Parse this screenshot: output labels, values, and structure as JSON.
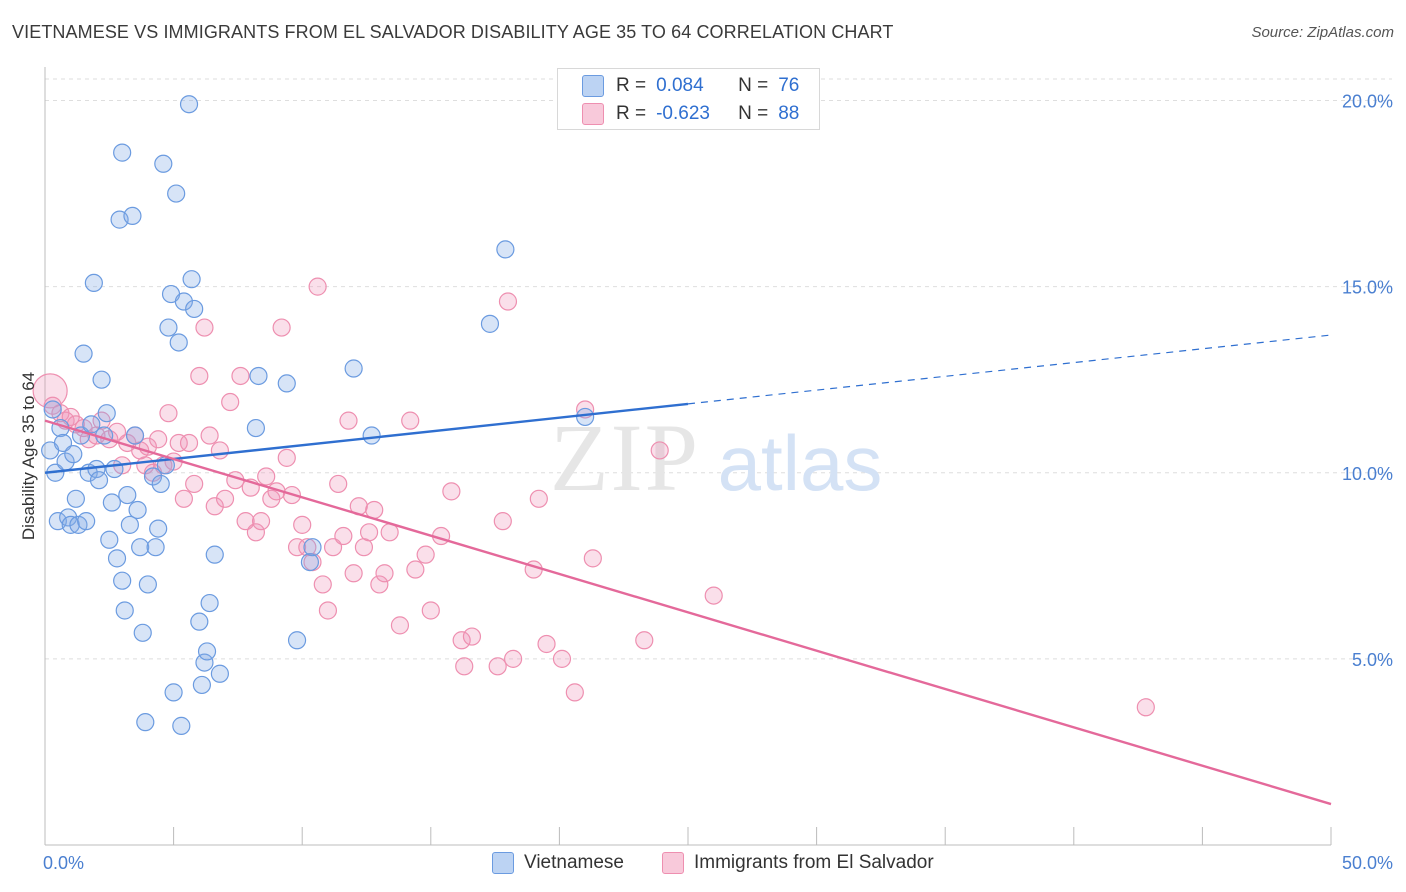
{
  "title": "VIETNAMESE VS IMMIGRANTS FROM EL SALVADOR DISABILITY AGE 35 TO 64 CORRELATION CHART",
  "source": "Source: ZipAtlas.com",
  "watermark": {
    "zip": "ZIP",
    "atlas": "atlas"
  },
  "stats": [
    {
      "r_label": "R =",
      "r_value": "0.084",
      "n_label": "N =",
      "n_value": "76"
    },
    {
      "r_label": "R =",
      "r_value": "-0.623",
      "n_label": "N =",
      "n_value": "88"
    }
  ],
  "chart_data": {
    "type": "scatter",
    "title": "VIETNAMESE VS IMMIGRANTS FROM EL SALVADOR DISABILITY AGE 35 TO 64 CORRELATION CHART",
    "xlabel": "",
    "ylabel": "Disability Age 35 to 64",
    "xlim": [
      0,
      50
    ],
    "ylim": [
      0,
      20.9
    ],
    "x_tick_labels": [
      "0.0%",
      "50.0%"
    ],
    "y_ticks": [
      5,
      10,
      15,
      20
    ],
    "y_tick_labels": [
      "5.0%",
      "10.0%",
      "15.0%",
      "20.0%"
    ],
    "grid": true,
    "legend_position": "bottom",
    "colors": {
      "vietnamese": "#6b9be0",
      "el_salvador": "#ee8fb0",
      "vietnamese_line": "#2f6fd0",
      "el_salvador_line": "#e4699a"
    },
    "series": [
      {
        "name": "Vietnamese",
        "color": "#6b9be0",
        "trend": {
          "x": [
            0,
            25
          ],
          "y": [
            10.0,
            11.85
          ],
          "dashed_extension": {
            "x": [
              25,
              50
            ],
            "y": [
              11.85,
              13.7
            ]
          }
        },
        "points": [
          [
            0.2,
            10.6
          ],
          [
            0.3,
            11.7
          ],
          [
            0.4,
            10.0
          ],
          [
            0.5,
            8.7
          ],
          [
            0.6,
            11.2
          ],
          [
            0.7,
            10.8
          ],
          [
            0.8,
            10.3
          ],
          [
            0.9,
            8.8
          ],
          [
            1.0,
            8.6
          ],
          [
            1.1,
            10.5
          ],
          [
            1.2,
            9.3
          ],
          [
            1.3,
            8.6
          ],
          [
            1.4,
            11.0
          ],
          [
            1.5,
            13.2
          ],
          [
            1.6,
            8.7
          ],
          [
            1.7,
            10.0
          ],
          [
            1.8,
            11.3
          ],
          [
            1.9,
            15.1
          ],
          [
            2.0,
            10.1
          ],
          [
            2.1,
            9.8
          ],
          [
            2.2,
            12.5
          ],
          [
            2.3,
            11.0
          ],
          [
            2.4,
            11.6
          ],
          [
            2.5,
            8.2
          ],
          [
            2.6,
            9.2
          ],
          [
            2.7,
            10.1
          ],
          [
            2.8,
            7.7
          ],
          [
            2.9,
            16.8
          ],
          [
            3.0,
            7.1
          ],
          [
            3.1,
            6.3
          ],
          [
            3.0,
            18.6
          ],
          [
            3.2,
            9.4
          ],
          [
            3.3,
            8.6
          ],
          [
            3.4,
            16.9
          ],
          [
            3.5,
            11.0
          ],
          [
            3.6,
            9.0
          ],
          [
            3.7,
            8.0
          ],
          [
            3.8,
            5.7
          ],
          [
            3.9,
            3.3
          ],
          [
            4.0,
            7.0
          ],
          [
            4.2,
            9.9
          ],
          [
            4.3,
            8.0
          ],
          [
            4.4,
            8.5
          ],
          [
            4.5,
            9.7
          ],
          [
            4.6,
            18.3
          ],
          [
            4.7,
            10.2
          ],
          [
            4.8,
            13.9
          ],
          [
            4.9,
            14.8
          ],
          [
            5.0,
            4.1
          ],
          [
            5.1,
            17.5
          ],
          [
            5.2,
            13.5
          ],
          [
            5.3,
            3.2
          ],
          [
            5.4,
            14.6
          ],
          [
            5.6,
            19.9
          ],
          [
            5.7,
            15.2
          ],
          [
            5.8,
            14.4
          ],
          [
            6.0,
            6.0
          ],
          [
            6.1,
            4.3
          ],
          [
            6.2,
            4.9
          ],
          [
            6.3,
            5.2
          ],
          [
            6.4,
            6.5
          ],
          [
            6.6,
            7.8
          ],
          [
            6.8,
            4.6
          ],
          [
            8.2,
            11.2
          ],
          [
            8.3,
            12.6
          ],
          [
            9.4,
            12.4
          ],
          [
            9.8,
            5.5
          ],
          [
            10.3,
            7.6
          ],
          [
            10.4,
            8.0
          ],
          [
            12.0,
            12.8
          ],
          [
            12.7,
            11.0
          ],
          [
            17.3,
            14.0
          ],
          [
            17.9,
            16.0
          ],
          [
            21.0,
            11.5
          ]
        ]
      },
      {
        "name": "Immigrants from El Salvador",
        "color": "#ee8fb0",
        "trend": {
          "x": [
            0,
            50
          ],
          "y": [
            11.4,
            1.1
          ]
        },
        "points": [
          [
            0.2,
            12.2
          ],
          [
            0.3,
            11.8
          ],
          [
            0.6,
            11.6
          ],
          [
            0.8,
            11.4
          ],
          [
            1.0,
            11.5
          ],
          [
            1.2,
            11.3
          ],
          [
            1.5,
            11.2
          ],
          [
            1.7,
            10.9
          ],
          [
            2.0,
            11.0
          ],
          [
            2.2,
            11.4
          ],
          [
            2.5,
            10.9
          ],
          [
            2.8,
            11.1
          ],
          [
            3.0,
            10.2
          ],
          [
            3.2,
            10.8
          ],
          [
            3.5,
            11.0
          ],
          [
            3.7,
            10.6
          ],
          [
            3.9,
            10.2
          ],
          [
            4.0,
            10.7
          ],
          [
            4.2,
            10.0
          ],
          [
            4.4,
            10.9
          ],
          [
            4.6,
            10.2
          ],
          [
            4.8,
            11.6
          ],
          [
            5.0,
            10.3
          ],
          [
            5.2,
            10.8
          ],
          [
            5.4,
            9.3
          ],
          [
            5.6,
            10.8
          ],
          [
            5.8,
            9.7
          ],
          [
            6.0,
            12.6
          ],
          [
            6.2,
            13.9
          ],
          [
            6.4,
            11.0
          ],
          [
            6.6,
            9.1
          ],
          [
            6.8,
            10.6
          ],
          [
            7.0,
            9.3
          ],
          [
            7.2,
            11.9
          ],
          [
            7.4,
            9.8
          ],
          [
            7.6,
            12.6
          ],
          [
            7.8,
            8.7
          ],
          [
            8.0,
            9.6
          ],
          [
            8.2,
            8.4
          ],
          [
            8.4,
            8.7
          ],
          [
            8.6,
            9.9
          ],
          [
            8.8,
            9.3
          ],
          [
            9.0,
            9.5
          ],
          [
            9.2,
            13.9
          ],
          [
            9.4,
            10.4
          ],
          [
            9.6,
            9.4
          ],
          [
            9.8,
            8.0
          ],
          [
            10.0,
            8.6
          ],
          [
            10.2,
            8.0
          ],
          [
            10.4,
            7.6
          ],
          [
            10.6,
            15.0
          ],
          [
            10.8,
            7.0
          ],
          [
            11.0,
            6.3
          ],
          [
            11.2,
            8.0
          ],
          [
            11.4,
            9.7
          ],
          [
            11.6,
            8.3
          ],
          [
            11.8,
            11.4
          ],
          [
            12.0,
            7.3
          ],
          [
            12.2,
            9.1
          ],
          [
            12.4,
            8.0
          ],
          [
            12.6,
            8.4
          ],
          [
            12.8,
            9.0
          ],
          [
            13.0,
            7.0
          ],
          [
            13.2,
            7.3
          ],
          [
            13.4,
            8.4
          ],
          [
            13.8,
            5.9
          ],
          [
            14.2,
            11.4
          ],
          [
            14.4,
            7.4
          ],
          [
            14.8,
            7.8
          ],
          [
            15.0,
            6.3
          ],
          [
            15.4,
            8.3
          ],
          [
            15.8,
            9.5
          ],
          [
            16.2,
            5.5
          ],
          [
            16.3,
            4.8
          ],
          [
            16.6,
            5.6
          ],
          [
            17.6,
            4.8
          ],
          [
            17.8,
            8.7
          ],
          [
            18.0,
            14.6
          ],
          [
            18.2,
            5.0
          ],
          [
            19.0,
            7.4
          ],
          [
            19.2,
            9.3
          ],
          [
            19.5,
            5.4
          ],
          [
            20.1,
            5.0
          ],
          [
            20.6,
            4.1
          ],
          [
            21.0,
            11.7
          ],
          [
            21.3,
            7.7
          ],
          [
            23.3,
            5.5
          ],
          [
            23.9,
            10.6
          ],
          [
            26.0,
            6.7
          ],
          [
            42.8,
            3.7
          ]
        ]
      }
    ]
  },
  "legend": [
    {
      "label": "Vietnamese",
      "fill": "#bcd3f3",
      "stroke": "#6b9be0"
    },
    {
      "label": "Immigrants from El Salvador",
      "fill": "#f8c9da",
      "stroke": "#ee8fb0"
    }
  ]
}
